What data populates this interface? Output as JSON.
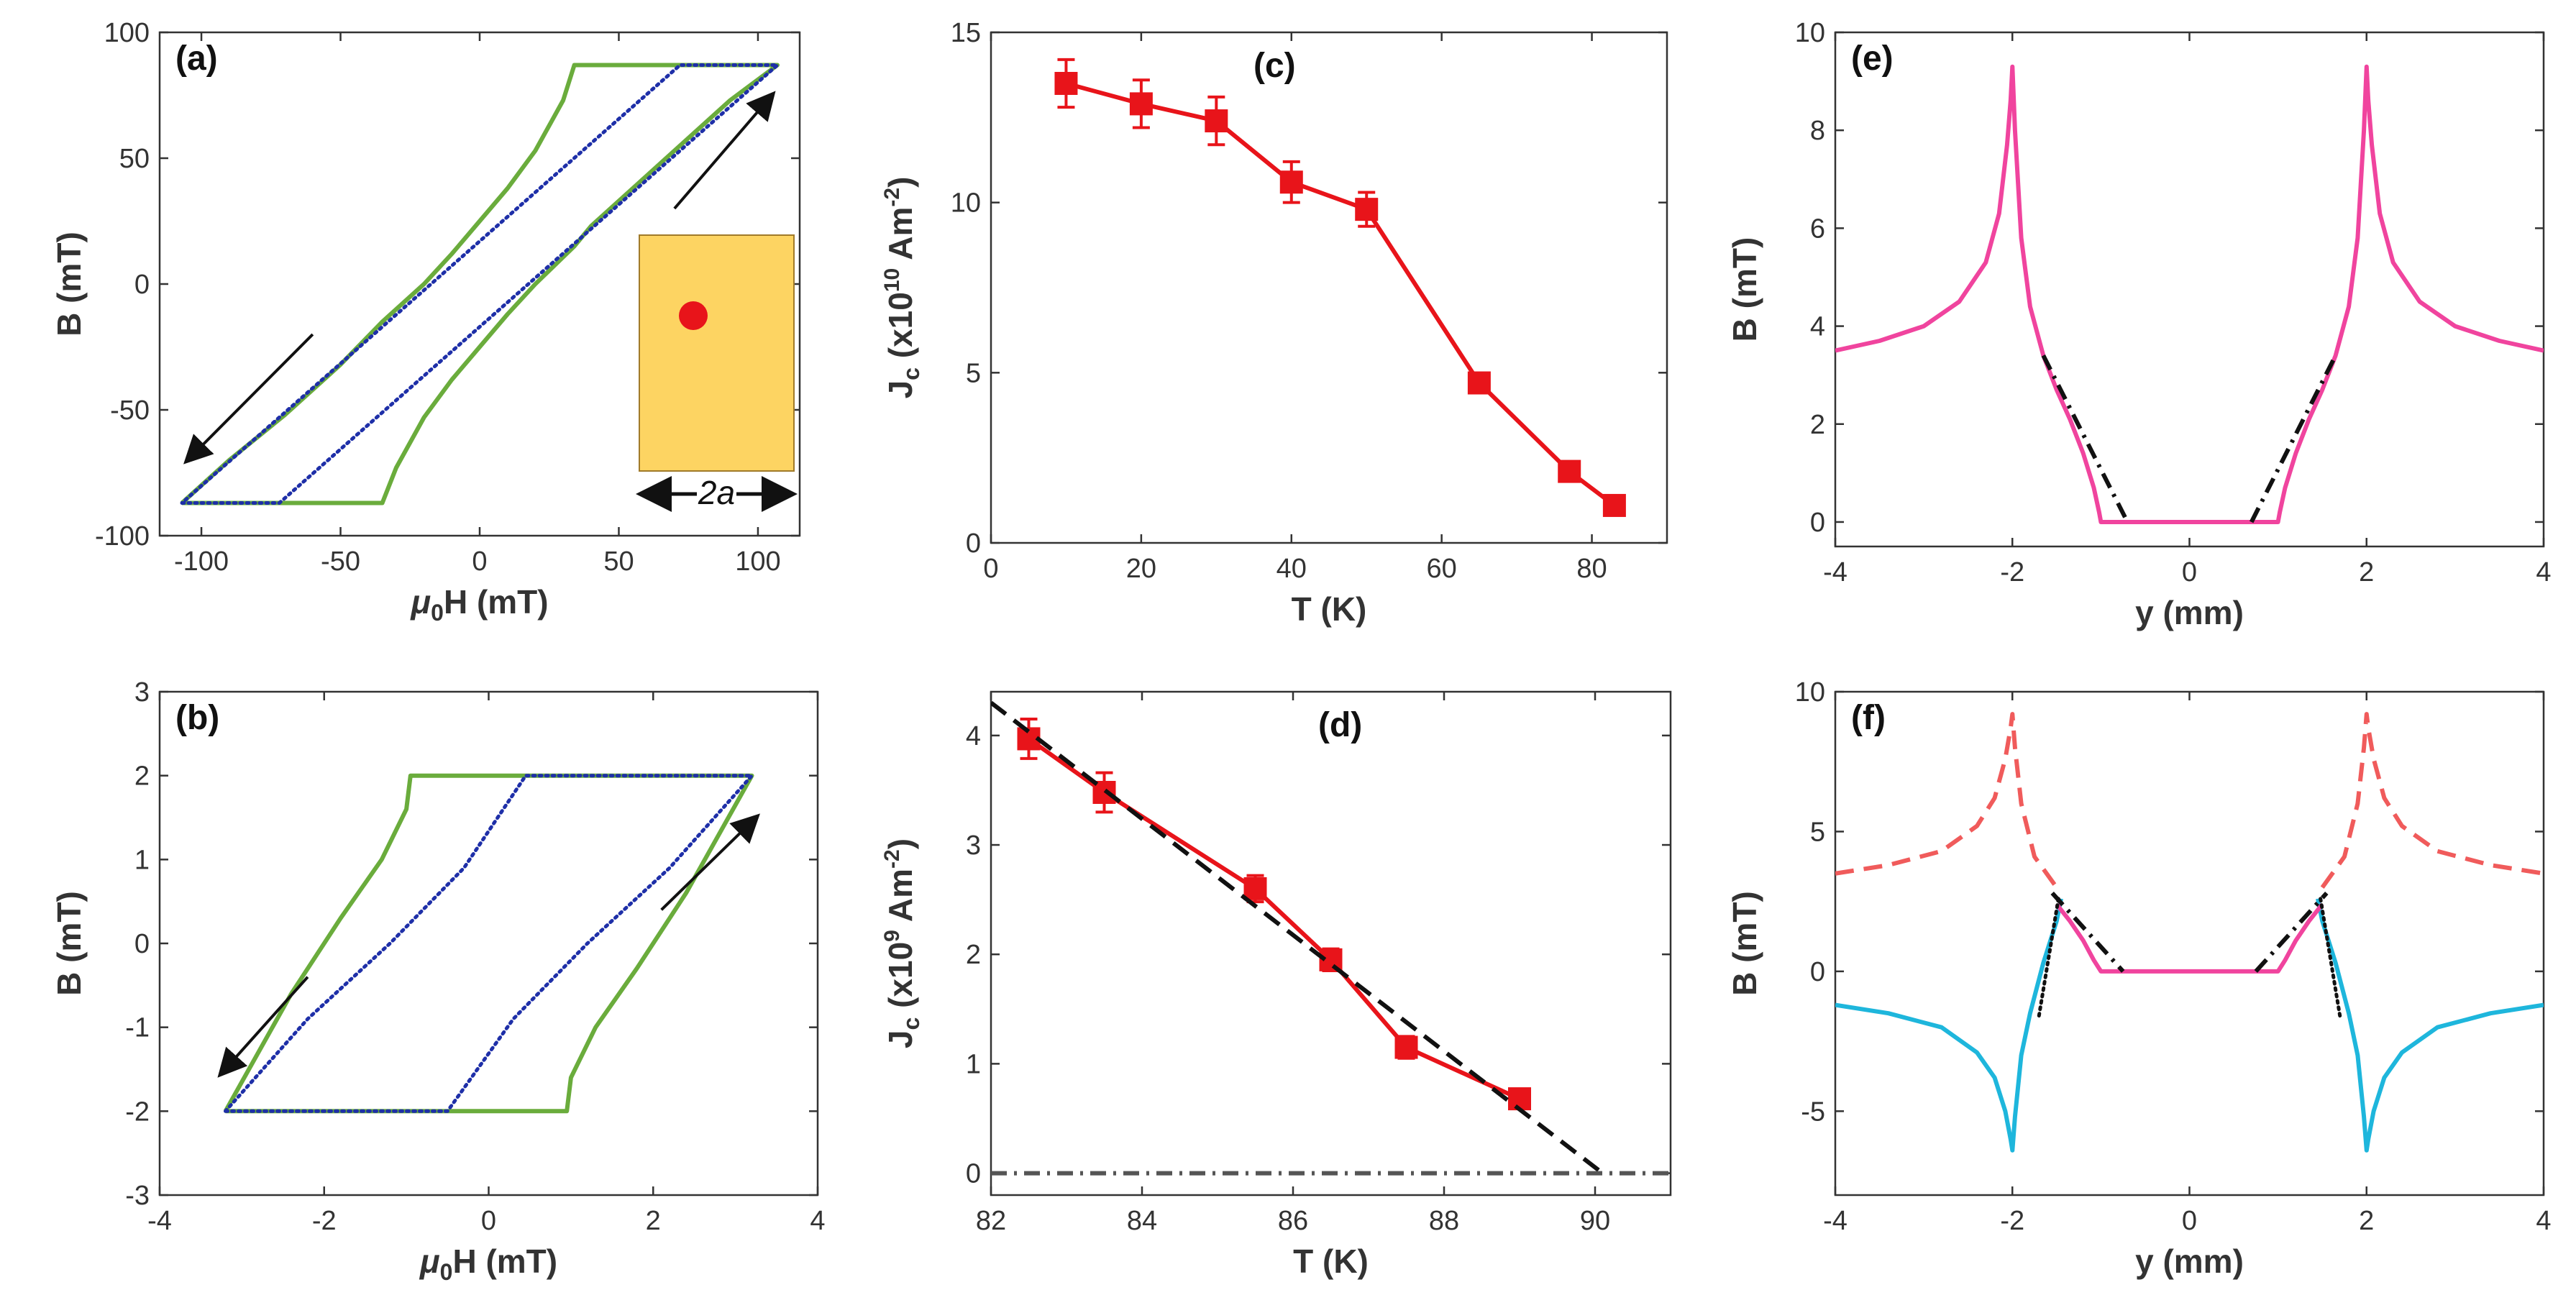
{
  "chart_data": [
    {
      "id": "a",
      "type": "line",
      "panel_label": "(a)",
      "xlabel_prefix": "μ",
      "xlabel_sub": "0",
      "xlabel_suffix": "H (mT)",
      "ylabel": "B (mT)",
      "xlim": [
        -115,
        115
      ],
      "ylim": [
        -100,
        100
      ],
      "xticks": [
        -100,
        -50,
        0,
        50,
        100
      ],
      "yticks": [
        -100,
        -50,
        0,
        50,
        100
      ],
      "series": [
        {
          "name": "model",
          "style": "solid",
          "color": "#6aac3c",
          "x": [
            -107,
            -80,
            -60,
            -45,
            -37,
            -35,
            -30,
            -20,
            -10,
            0,
            10,
            20,
            34,
            40,
            50,
            60,
            70,
            80,
            90,
            107,
            70,
            50,
            40,
            36,
            34.5,
            34,
            30,
            20,
            10,
            0,
            -10,
            -20,
            -35,
            -50,
            -70,
            -90,
            -107
          ],
          "y": [
            -87,
            -87,
            -87,
            -87,
            -87,
            -87,
            -73,
            -53,
            -38,
            -25,
            -12,
            0,
            15,
            23,
            33,
            43,
            53,
            63,
            73,
            87,
            87,
            87,
            87,
            87,
            87,
            87,
            73,
            53,
            38,
            25,
            12,
            0,
            -15,
            -32,
            -52,
            -70,
            -87
          ]
        },
        {
          "name": "measured",
          "style": "dotted",
          "color": "#1e2fa8",
          "x": [
            -107,
            -72,
            107,
            72,
            -107
          ],
          "y": [
            -87,
            -87,
            87,
            87,
            -87
          ]
        }
      ],
      "arrows": [
        {
          "x1": 70,
          "y1": 30,
          "x2": 105,
          "y2": 75
        },
        {
          "x1": -60,
          "y1": -20,
          "x2": -105,
          "y2": -70
        }
      ],
      "inset": {
        "label": "2a",
        "fill": "#fdd462",
        "dot_color": "#e8141a"
      }
    },
    {
      "id": "b",
      "type": "line",
      "panel_label": "(b)",
      "xlabel_prefix": "μ",
      "xlabel_sub": "0",
      "xlabel_suffix": "H (mT)",
      "ylabel": "B (mT)",
      "xlim": [
        -4,
        4
      ],
      "ylim": [
        -3,
        3
      ],
      "xticks": [
        -4,
        -2,
        0,
        2,
        4
      ],
      "yticks": [
        -3,
        -2,
        -1,
        0,
        1,
        2,
        3
      ],
      "series": [
        {
          "name": "model",
          "style": "solid",
          "color": "#6aac3c",
          "x": [
            -3.2,
            -2,
            -1,
            0,
            0.95,
            1,
            1.3,
            1.8,
            2.4,
            3.2,
            2,
            1,
            0,
            -0.95,
            -1,
            -1.3,
            -1.8,
            -2.4,
            -3.2
          ],
          "y": [
            -2,
            -2,
            -2,
            -2,
            -2,
            -1.6,
            -1.0,
            -0.3,
            0.6,
            2,
            2,
            2,
            2,
            2,
            1.6,
            1.0,
            0.3,
            -0.6,
            -2
          ]
        },
        {
          "name": "measured",
          "style": "dotted",
          "color": "#1e2fa8",
          "x": [
            -3.2,
            -2,
            -0.5,
            0.3,
            1.2,
            2.2,
            3.2,
            2,
            0.45,
            -0.3,
            -1.2,
            -2.2,
            -3.2
          ],
          "y": [
            -2,
            -2,
            -2,
            -0.9,
            0.0,
            0.9,
            2,
            2,
            2,
            0.9,
            0.0,
            -0.9,
            -2
          ]
        }
      ],
      "arrows": [
        {
          "x1": 2.1,
          "y1": 0.4,
          "x2": 3.25,
          "y2": 1.5
        },
        {
          "x1": -2.2,
          "y1": -0.4,
          "x2": -3.25,
          "y2": -1.55
        }
      ]
    },
    {
      "id": "c",
      "type": "line",
      "panel_label": "(c)",
      "xlabel": "T (K)",
      "ylabel_prefix": "J",
      "ylabel_sub": "c",
      "ylabel_mid": " (x10",
      "ylabel_sup": "10",
      "ylabel_suffix": " Am",
      "ylabel_sup2": "-2",
      "ylabel_end": ")",
      "xlim": [
        0,
        90
      ],
      "ylim": [
        0,
        15
      ],
      "xticks": [
        0,
        20,
        40,
        60,
        80
      ],
      "yticks": [
        0,
        5,
        10,
        15
      ],
      "series": [
        {
          "name": "Jc",
          "color": "#e8141a",
          "x": [
            10,
            20,
            30,
            40,
            50,
            65,
            77,
            83
          ],
          "y": [
            13.5,
            12.9,
            12.4,
            10.6,
            9.8,
            4.7,
            2.1,
            1.1
          ],
          "err": [
            0.7,
            0.7,
            0.7,
            0.6,
            0.5,
            0.2,
            0.2,
            0.1
          ]
        }
      ]
    },
    {
      "id": "d",
      "type": "line",
      "panel_label": "(d)",
      "xlabel": "T (K)",
      "ylabel_prefix": "J",
      "ylabel_sub": "c",
      "ylabel_mid": " (x10",
      "ylabel_sup": "9",
      "ylabel_suffix": " Am",
      "ylabel_sup2": "-2",
      "ylabel_end": ")",
      "xlim": [
        82,
        91
      ],
      "ylim": [
        -0.2,
        4.4
      ],
      "xticks": [
        82,
        84,
        86,
        88,
        90
      ],
      "yticks": [
        0,
        1,
        2,
        3,
        4
      ],
      "series": [
        {
          "name": "Jc",
          "color": "#e8141a",
          "x": [
            82.5,
            83.5,
            85.5,
            86.5,
            87.5,
            89
          ],
          "y": [
            3.97,
            3.48,
            2.6,
            1.95,
            1.15,
            0.68
          ],
          "err": [
            0.18,
            0.18,
            0.12,
            0.1,
            0.1,
            0.08
          ]
        },
        {
          "name": "fit",
          "style": "dashed",
          "color": "#111111",
          "x": [
            82,
            90.1
          ],
          "y": [
            4.3,
            0
          ]
        },
        {
          "name": "zero",
          "style": "dashdot",
          "color": "#555555",
          "x": [
            82,
            91
          ],
          "y": [
            0,
            0
          ]
        }
      ]
    },
    {
      "id": "e",
      "type": "line",
      "panel_label": "(e)",
      "xlabel": "y (mm)",
      "ylabel": "B (mT)",
      "xlim": [
        -4,
        4
      ],
      "ylim": [
        -0.5,
        10
      ],
      "xticks": [
        -4,
        -2,
        0,
        2,
        4
      ],
      "yticks": [
        0,
        2,
        4,
        6,
        8,
        10
      ],
      "series": [
        {
          "name": "field",
          "color": "#f0449e",
          "x": [
            -4,
            -3.5,
            -3,
            -2.6,
            -2.3,
            -2.15,
            -2.06,
            -2.02,
            -2.0,
            -1.97,
            -1.9,
            -1.8,
            -1.65,
            -1.5,
            -1.35,
            -1.2,
            -1.08,
            -1.02,
            -1.0,
            -0.5,
            0,
            0.5,
            1.0,
            1.02,
            1.08,
            1.2,
            1.35,
            1.5,
            1.65,
            1.8,
            1.9,
            1.97,
            2.0,
            2.02,
            2.06,
            2.15,
            2.3,
            2.6,
            3,
            3.5,
            4
          ],
          "y": [
            3.5,
            3.7,
            4.0,
            4.5,
            5.3,
            6.3,
            7.7,
            8.6,
            9.3,
            8.0,
            5.8,
            4.4,
            3.4,
            2.7,
            2.1,
            1.4,
            0.7,
            0.2,
            0,
            0,
            0,
            0,
            0,
            0.2,
            0.7,
            1.4,
            2.1,
            2.7,
            3.4,
            4.4,
            5.8,
            8.0,
            9.3,
            8.6,
            7.7,
            6.3,
            5.3,
            4.5,
            4.0,
            3.7,
            3.5
          ]
        },
        {
          "name": "tangent-left",
          "style": "dashdot",
          "color": "#111111",
          "x": [
            -1.65,
            -0.7
          ],
          "y": [
            3.4,
            0
          ]
        },
        {
          "name": "tangent-right",
          "style": "dashdot",
          "color": "#111111",
          "x": [
            0.7,
            1.65
          ],
          "y": [
            0,
            3.4
          ]
        }
      ]
    },
    {
      "id": "f",
      "type": "line",
      "panel_label": "(f)",
      "xlabel": "y (mm)",
      "ylabel": "B (mT)",
      "xlim": [
        -4,
        4
      ],
      "ylim": [
        -8,
        10
      ],
      "xticks": [
        -4,
        -2,
        0,
        2,
        4
      ],
      "yticks": [
        -5,
        0,
        5,
        10
      ],
      "series": [
        {
          "name": "upper-field",
          "style": "dashed",
          "color": "#f05b5b",
          "x": [
            -4,
            -3.4,
            -2.8,
            -2.4,
            -2.2,
            -2.08,
            -2.02,
            -2.0,
            -1.97,
            -1.9,
            -1.75,
            -1.5
          ],
          "y": [
            3.5,
            3.8,
            4.3,
            5.2,
            6.2,
            7.6,
            8.7,
            9.2,
            8.0,
            6.0,
            4.1,
            3.0
          ]
        },
        {
          "name": "upper-field-right",
          "style": "dashed",
          "color": "#f05b5b",
          "x": [
            1.5,
            1.75,
            1.9,
            1.97,
            2.0,
            2.02,
            2.08,
            2.2,
            2.4,
            2.8,
            3.4,
            4
          ],
          "y": [
            3.0,
            4.1,
            6.0,
            8.0,
            9.2,
            8.7,
            7.6,
            6.2,
            5.2,
            4.3,
            3.8,
            3.5
          ]
        },
        {
          "name": "lower-field-left",
          "color": "#1eb6dc",
          "x": [
            -4,
            -3.4,
            -2.8,
            -2.4,
            -2.2,
            -2.08,
            -2.02,
            -2.0,
            -1.97,
            -1.9,
            -1.8,
            -1.65,
            -1.5,
            -1.45
          ],
          "y": [
            -1.2,
            -1.5,
            -2.0,
            -2.9,
            -3.8,
            -5.0,
            -6.0,
            -6.4,
            -5.2,
            -3.0,
            -1.5,
            0.3,
            1.8,
            2.6
          ]
        },
        {
          "name": "lower-field-right",
          "color": "#1eb6dc",
          "x": [
            1.45,
            1.5,
            1.65,
            1.8,
            1.9,
            1.97,
            2.0,
            2.02,
            2.08,
            2.2,
            2.4,
            2.8,
            3.4,
            4
          ],
          "y": [
            2.6,
            1.8,
            0.3,
            -1.5,
            -3.0,
            -5.2,
            -6.4,
            -6.0,
            -5.0,
            -3.8,
            -2.9,
            -2.0,
            -1.5,
            -1.2
          ]
        },
        {
          "name": "center",
          "color": "#f0449e",
          "x": [
            -1.5,
            -1.35,
            -1.2,
            -1.08,
            -1.0,
            0,
            1.0,
            1.08,
            1.2,
            1.35,
            1.5
          ],
          "y": [
            2.4,
            1.8,
            1.1,
            0.4,
            0,
            0,
            0,
            0.4,
            1.1,
            1.8,
            2.4
          ]
        },
        {
          "name": "tangent-left",
          "style": "dashdot",
          "color": "#111111",
          "x": [
            -1.55,
            -0.75
          ],
          "y": [
            2.8,
            0
          ]
        },
        {
          "name": "tangent-right",
          "style": "dashdot",
          "color": "#111111",
          "x": [
            0.75,
            1.55
          ],
          "y": [
            0,
            2.8
          ]
        },
        {
          "name": "dotted-left",
          "style": "dotted",
          "color": "#111111",
          "x": [
            -1.48,
            -1.7
          ],
          "y": [
            2.6,
            -1.6
          ]
        },
        {
          "name": "dotted-right",
          "style": "dotted",
          "color": "#111111",
          "x": [
            1.48,
            1.7
          ],
          "y": [
            2.6,
            -1.6
          ]
        }
      ]
    }
  ]
}
